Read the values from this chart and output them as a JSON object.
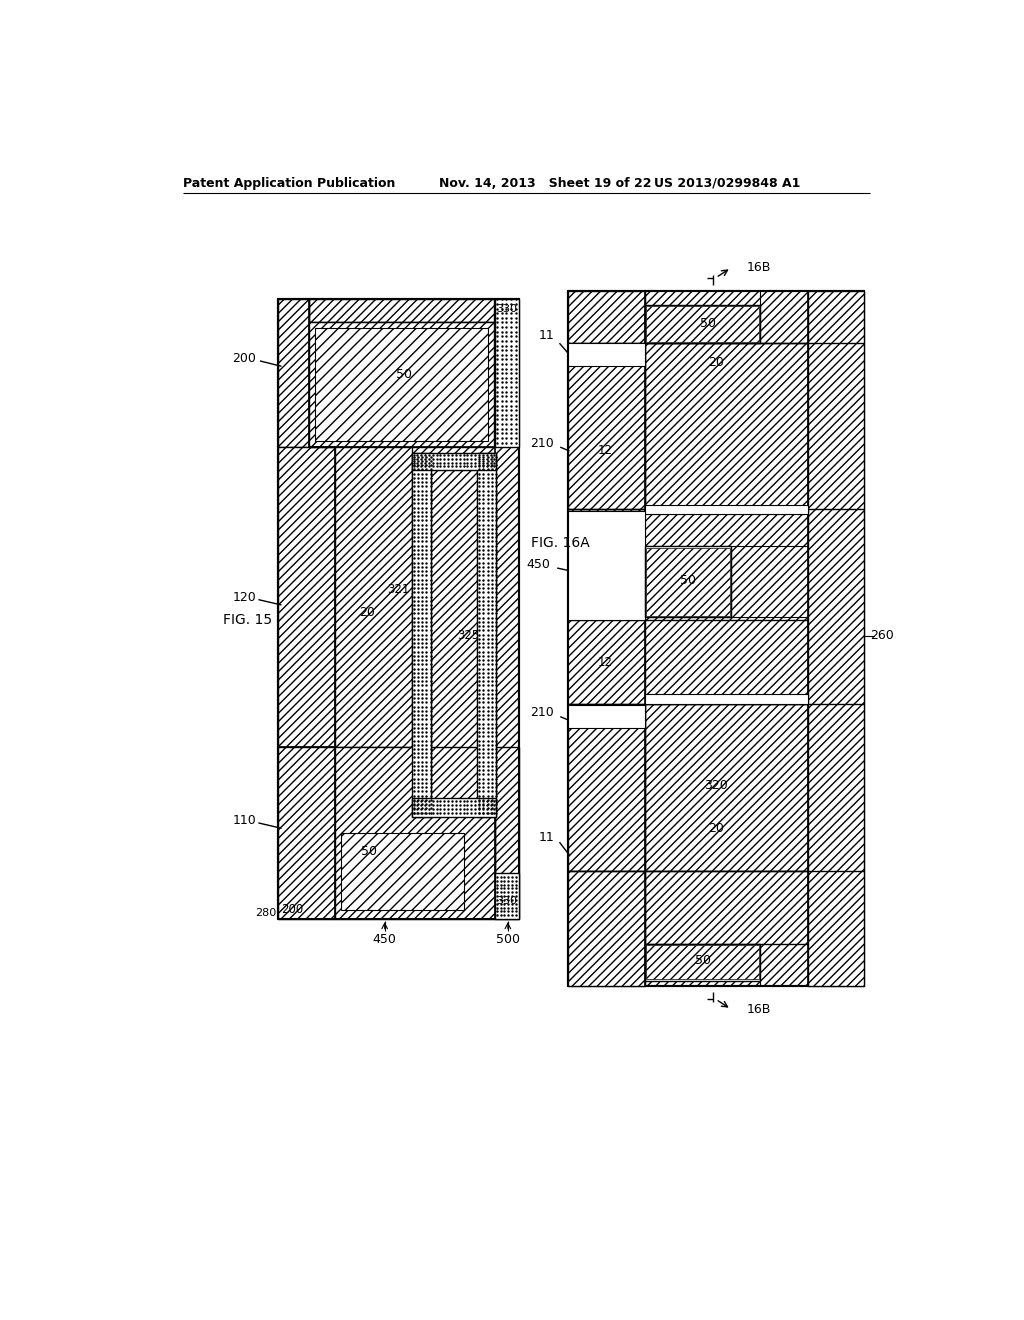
{
  "header_left": "Patent Application Publication",
  "header_mid": "Nov. 14, 2013   Sheet 19 of 22",
  "header_right": "US 2013/0299848 A1",
  "fig15_label": "FIG. 15",
  "fig16a_label": "FIG. 16A",
  "background": "#ffffff"
}
